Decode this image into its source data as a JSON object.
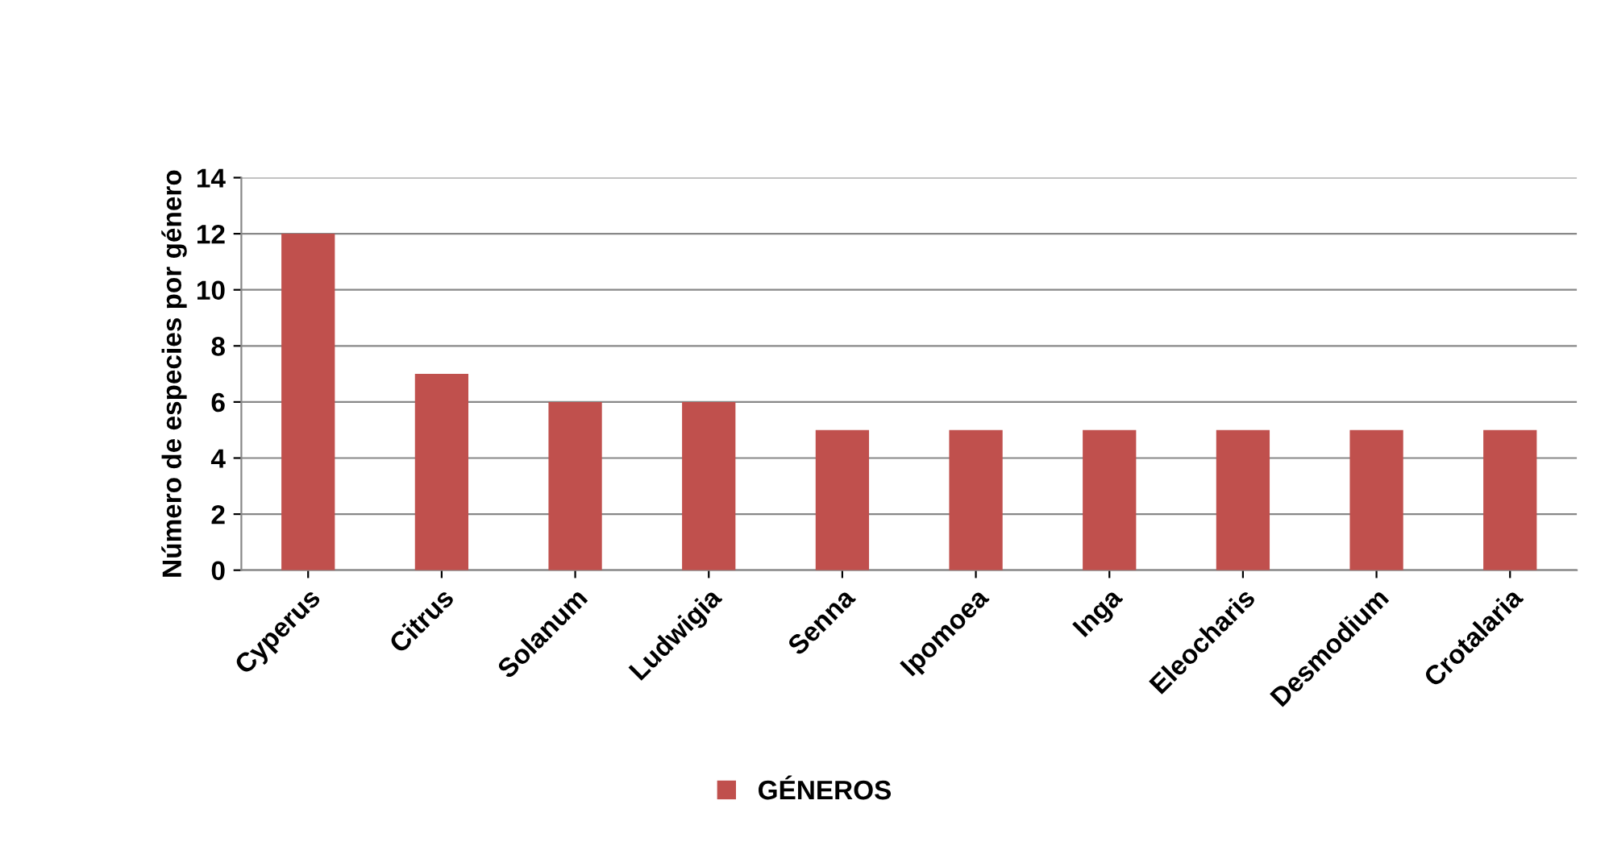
{
  "chart_data": {
    "type": "bar",
    "ylabel": "Número de especies por género",
    "categories": [
      "Cyperus",
      "Citrus",
      "Solanum",
      "Ludwigia",
      "Senna",
      "Ipomoea",
      "Inga",
      "Eleocharis",
      "Desmodium",
      "Crotalaria"
    ],
    "series": [
      {
        "name": "GÉNEROS",
        "color": "#c0504d",
        "values": [
          12,
          7,
          6,
          6,
          5,
          5,
          5,
          5,
          5,
          5
        ]
      }
    ],
    "ylim": [
      0,
      14
    ],
    "yticks": [
      0,
      2,
      4,
      6,
      8,
      10,
      12,
      14
    ],
    "grid": "y",
    "legend": "bottom"
  }
}
